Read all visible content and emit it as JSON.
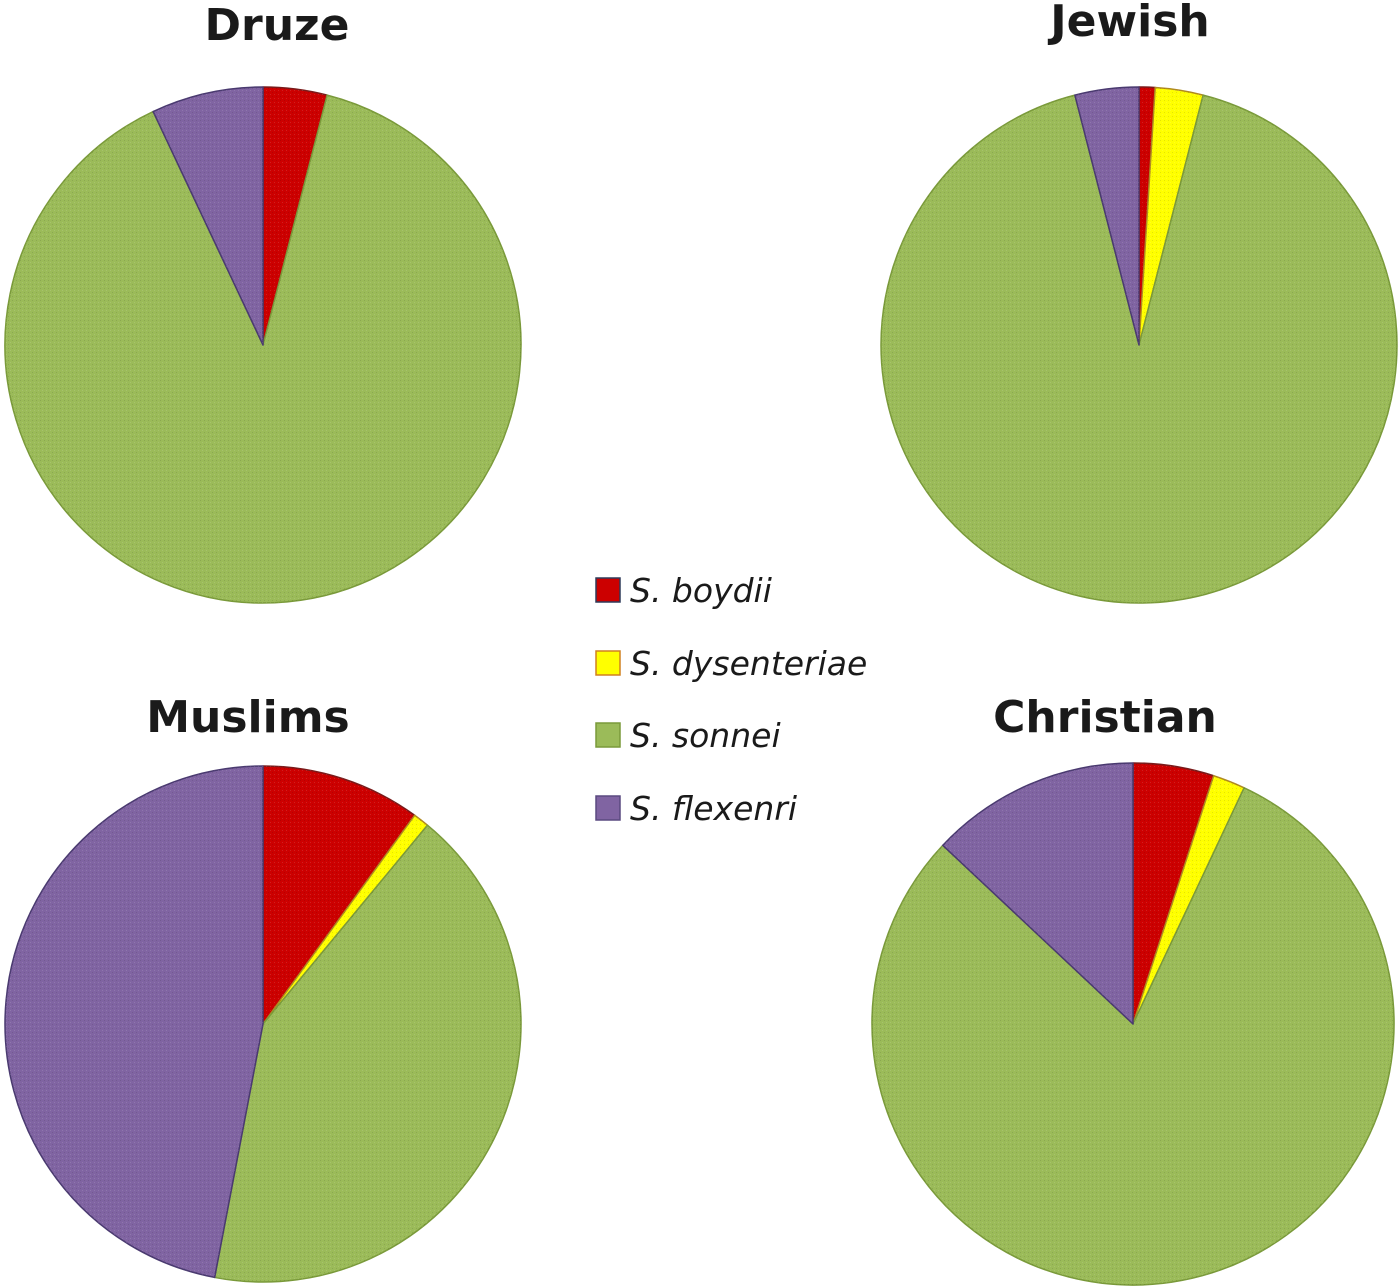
{
  "colors": {
    "S. boydii": "#cc0000",
    "S. dysenteriae": "#ffff00",
    "S. sonnei": "#9bbb59",
    "S. flexenri": "#8064a2"
  },
  "legend": {
    "items": [
      {
        "label": "S. boydii",
        "color": "#cc0000"
      },
      {
        "label": "S. dysenteriae",
        "color": "#ffff00"
      },
      {
        "label": "S. sonnei",
        "color": "#9bbb59"
      },
      {
        "label": "S. flexenri",
        "color": "#8064a2"
      }
    ]
  },
  "chart_data": [
    {
      "type": "pie",
      "title": "Druze",
      "categories": [
        "S. boydii",
        "S. dysenteriae",
        "S. sonnei",
        "S. flexenri"
      ],
      "values": [
        4,
        0,
        89,
        7
      ]
    },
    {
      "type": "pie",
      "title": "Jewish",
      "categories": [
        "S. boydii",
        "S. dysenteriae",
        "S. sonnei",
        "S. flexenri"
      ],
      "values": [
        1,
        3,
        92,
        4
      ]
    },
    {
      "type": "pie",
      "title": "Muslims",
      "categories": [
        "S. boydii",
        "S. dysenteriae",
        "S. sonnei",
        "S. flexenri"
      ],
      "values": [
        10,
        1,
        42,
        47
      ]
    },
    {
      "type": "pie",
      "title": "Christian",
      "categories": [
        "S. boydii",
        "S. dysenteriae",
        "S. sonnei",
        "S. flexenri"
      ],
      "values": [
        5,
        2,
        80,
        13
      ]
    }
  ]
}
